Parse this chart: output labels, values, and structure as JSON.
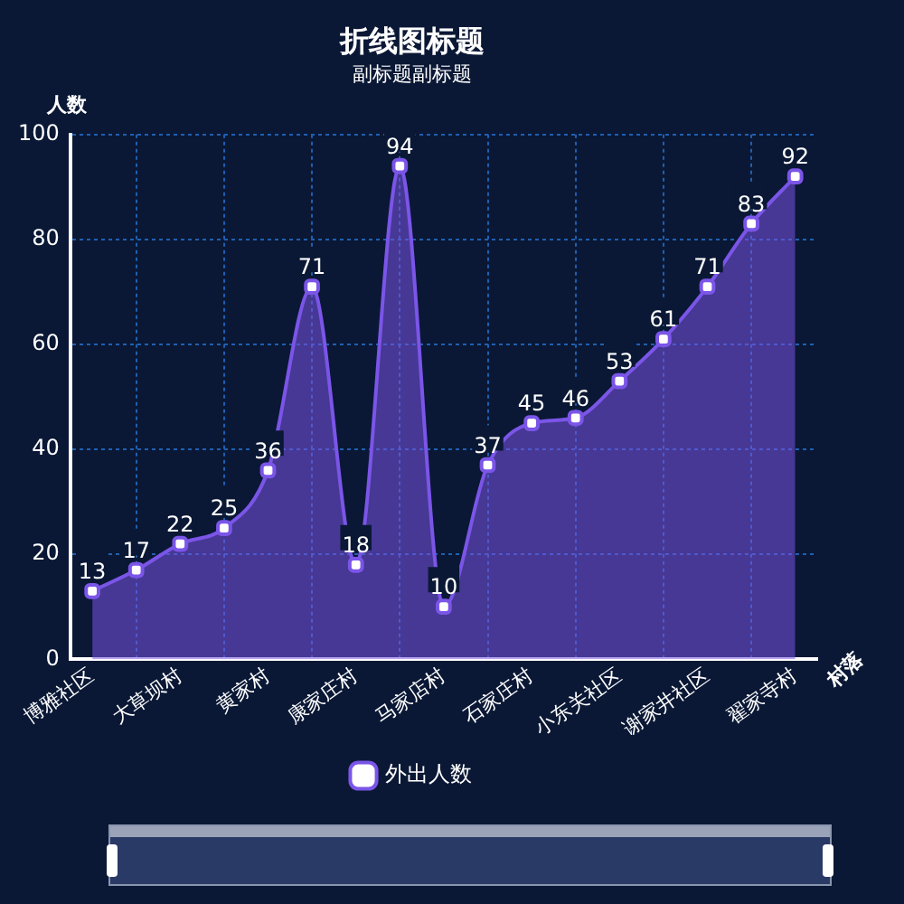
{
  "chart_data": {
    "type": "area",
    "title": "折线图标题",
    "subtitle": "副标题副标题",
    "xlabel": "村落",
    "ylabel": "人数",
    "categories": [
      "博雅社区",
      null,
      "大草坝村",
      null,
      "黄家村",
      null,
      "康家庄村",
      null,
      "马家店村",
      null,
      "石家庄村",
      null,
      "小东关社区",
      null,
      "谢家井社区",
      null,
      "翟家寺村"
    ],
    "series": [
      {
        "name": "外出人数",
        "color": "#7b55e8",
        "values": [
          13,
          17,
          22,
          25,
          36,
          71,
          18,
          94,
          10,
          37,
          45,
          46,
          53,
          61,
          71,
          83,
          92
        ]
      }
    ],
    "ylim": [
      0,
      100
    ],
    "yticks": [
      0,
      20,
      40,
      60,
      80,
      100
    ],
    "grid": true,
    "legend": "bottom",
    "marker": "square",
    "data_labels": true
  }
}
